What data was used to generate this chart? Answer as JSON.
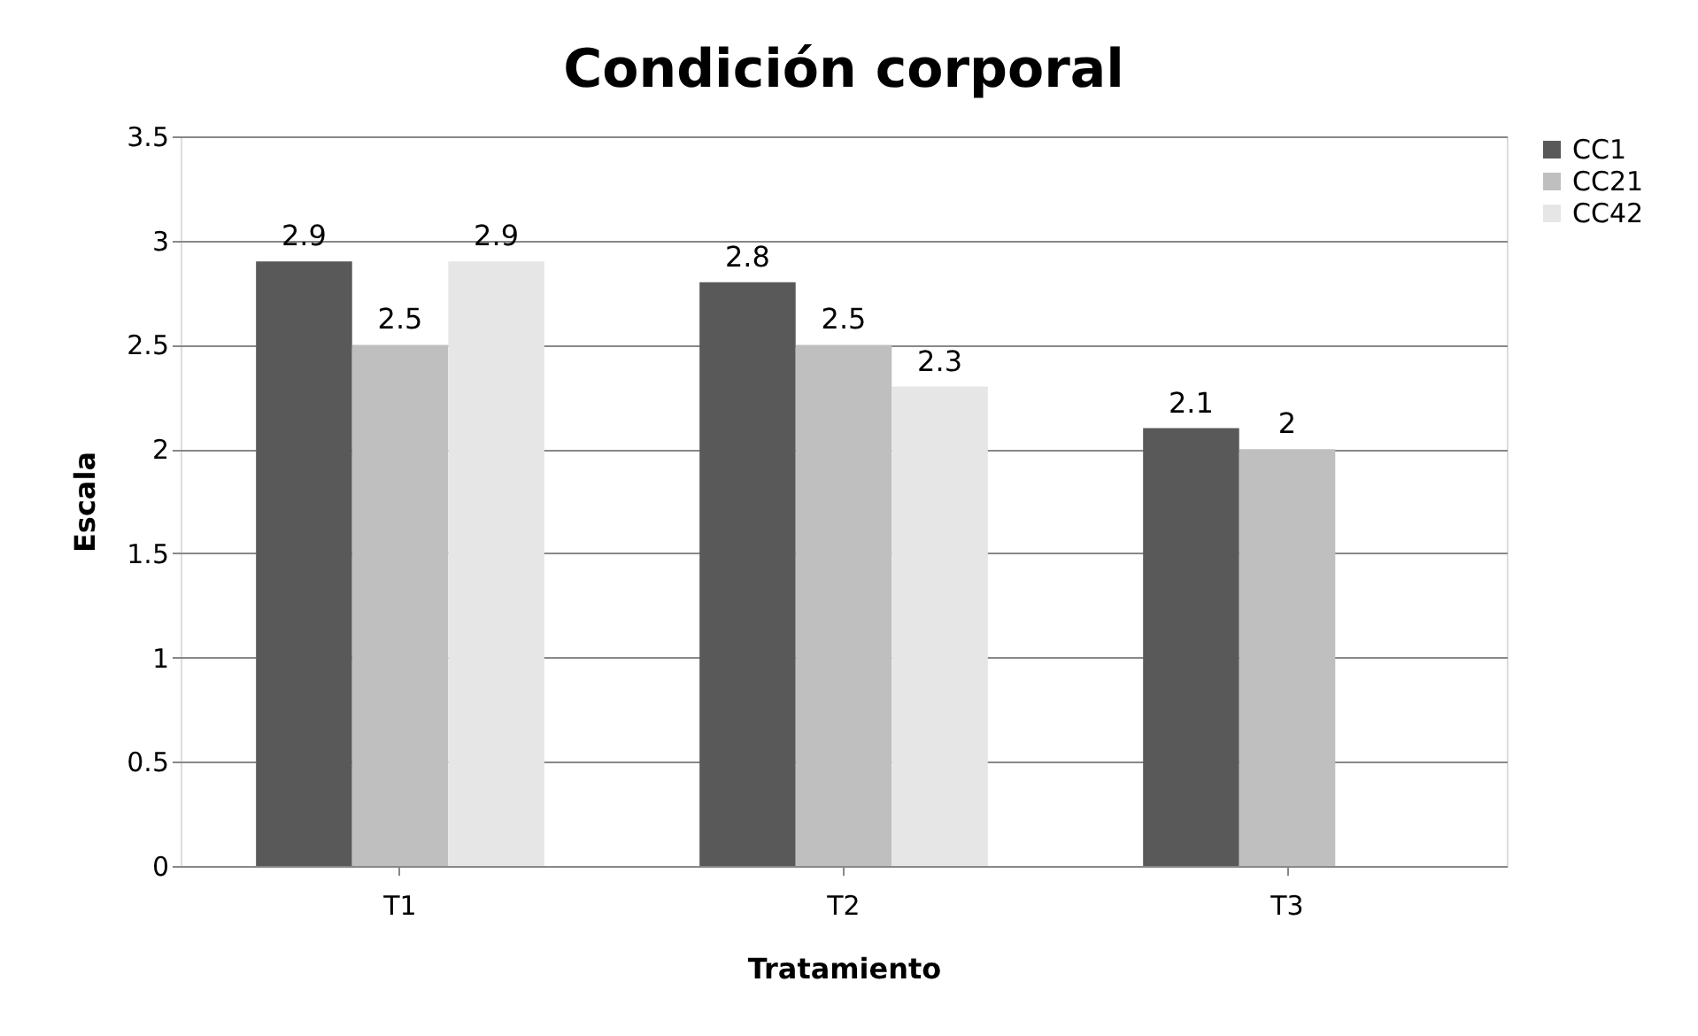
{
  "chart_data": {
    "type": "bar",
    "title": "Condición corporal",
    "xlabel": "Tratamiento",
    "ylabel": "Escala",
    "categories": [
      "T1",
      "T2",
      "T3"
    ],
    "series": [
      {
        "name": "CC1",
        "color": "#595959",
        "values": [
          2.9,
          2.8,
          2.1
        ]
      },
      {
        "name": "CC21",
        "color": "#bfbfbf",
        "values": [
          2.5,
          2.5,
          2
        ]
      },
      {
        "name": "CC42",
        "color": "#e6e6e6",
        "values": [
          2.9,
          2.3,
          null
        ]
      }
    ],
    "ylim": [
      0,
      3.5
    ],
    "yticks": [
      0,
      0.5,
      1,
      1.5,
      2,
      2.5,
      3,
      3.5
    ],
    "grid": "y",
    "legend": "right",
    "data_labels": true
  }
}
